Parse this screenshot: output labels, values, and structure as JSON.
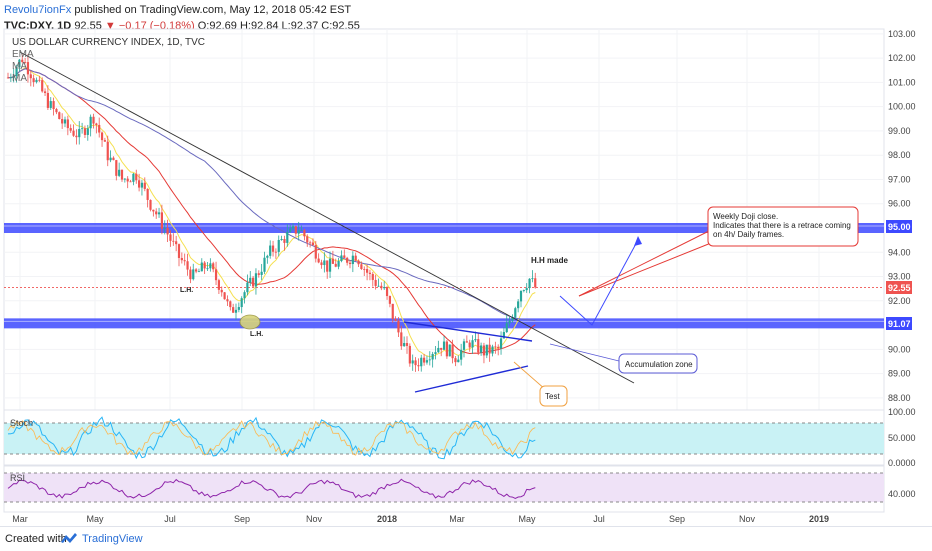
{
  "header": {
    "author": "Revolu7ionFx",
    "published_text": "published on TradingView.com, May 12, 2018 05:42 EST",
    "symbol": "TVC:DXY, 1D",
    "price": "92.55",
    "change": "▼ −0.17 (−0.18%)",
    "ohlc": "O:92.69 H:92.84 L:92.37 C:92.55"
  },
  "chart_data": {
    "type": "candlestick",
    "title": "US DOLLAR CURRENCY INDEX, 1D, TVC",
    "legend": [
      "EMA",
      "MA",
      "MA"
    ],
    "x_ticks": [
      "Mar",
      "May",
      "Jul",
      "Sep",
      "Nov",
      "2018",
      "Mar",
      "May",
      "Jul",
      "Sep",
      "Nov",
      "2019"
    ],
    "y_ticks": [
      "103.00",
      "102.00",
      "101.00",
      "100.00",
      "99.00",
      "98.00",
      "97.00",
      "96.00",
      "95.00",
      "94.00",
      "93.00",
      "92.00",
      "91.00",
      "90.00",
      "89.00",
      "88.00"
    ],
    "ylim": [
      87.5,
      103.2
    ],
    "price_path": [
      {
        "t": 0,
        "v": 101.2
      },
      {
        "t": 5,
        "v": 102.0
      },
      {
        "t": 10,
        "v": 101.0
      },
      {
        "t": 15,
        "v": 100.0
      },
      {
        "t": 20,
        "v": 99.2
      },
      {
        "t": 25,
        "v": 98.8
      },
      {
        "t": 30,
        "v": 99.6
      },
      {
        "t": 35,
        "v": 98.0
      },
      {
        "t": 40,
        "v": 97.0
      },
      {
        "t": 45,
        "v": 97.2
      },
      {
        "t": 50,
        "v": 96.0
      },
      {
        "t": 55,
        "v": 95.0
      },
      {
        "t": 60,
        "v": 93.8
      },
      {
        "t": 65,
        "v": 93.0
      },
      {
        "t": 70,
        "v": 93.5
      },
      {
        "t": 75,
        "v": 92.5
      },
      {
        "t": 78,
        "v": 91.5
      },
      {
        "t": 82,
        "v": 92.2
      },
      {
        "t": 87,
        "v": 93.0
      },
      {
        "t": 92,
        "v": 94.0
      },
      {
        "t": 97,
        "v": 94.6
      },
      {
        "t": 102,
        "v": 95.0
      },
      {
        "t": 107,
        "v": 94.2
      },
      {
        "t": 112,
        "v": 93.4
      },
      {
        "t": 117,
        "v": 93.6
      },
      {
        "t": 122,
        "v": 93.9
      },
      {
        "t": 127,
        "v": 93.0
      },
      {
        "t": 132,
        "v": 92.4
      },
      {
        "t": 137,
        "v": 90.7
      },
      {
        "t": 142,
        "v": 89.3
      },
      {
        "t": 147,
        "v": 89.8
      },
      {
        "t": 152,
        "v": 90.2
      },
      {
        "t": 157,
        "v": 89.7
      },
      {
        "t": 162,
        "v": 90.3
      },
      {
        "t": 167,
        "v": 89.9
      },
      {
        "t": 172,
        "v": 90.0
      },
      {
        "t": 176,
        "v": 91.2
      },
      {
        "t": 180,
        "v": 92.5
      },
      {
        "t": 183,
        "v": 92.9
      },
      {
        "t": 185,
        "v": 92.55
      }
    ],
    "last_price": "92.55",
    "price_labels": [
      "95.00",
      "91.07"
    ],
    "support_resistance": [
      95.0,
      91.07
    ],
    "oscillators": [
      {
        "name": "Stoch",
        "ticks": [
          "100.00",
          "50.000",
          "0.0000"
        ]
      },
      {
        "name": "RSI",
        "ticks": [
          "40.000"
        ]
      }
    ],
    "annotations": {
      "hh": "H.H made",
      "lh1": "L.H.",
      "lh2": "L.H.",
      "weekly_line1": "Weekly Doji close.",
      "weekly_line2": "Indicates that there is a retrace coming",
      "weekly_line3": "on 4h/ Daily frames.",
      "accumulation": "Accumulation zone",
      "test": "Test"
    },
    "colors": {
      "up": "#26a69a",
      "down": "#ef5350",
      "ema": "#f5e050",
      "ma_fast": "#e53935",
      "ma_slow": "#6a6abf",
      "band": "#3d49ff",
      "stoch_bg": "#c9f2f5",
      "rsi_bg": "#efe2f7"
    }
  },
  "footer": {
    "created": "Created with",
    "brand": "TradingView"
  }
}
